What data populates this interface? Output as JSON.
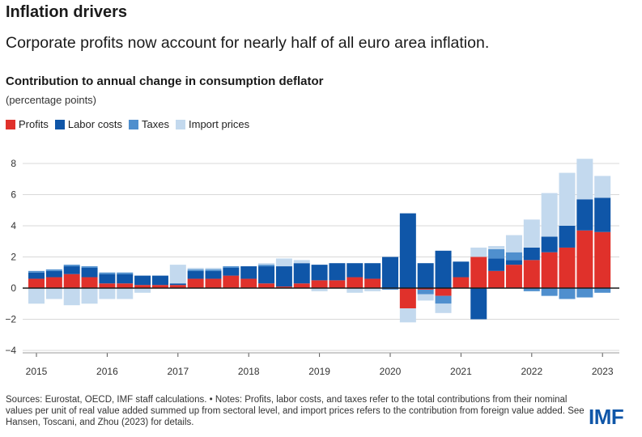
{
  "header": {
    "title": "Inflation drivers",
    "subtitle": "Corporate profits now account for nearly half of all euro area inflation."
  },
  "chart_heading": {
    "title": "Contribution to annual change in consumption deflator",
    "units": "(percentage points)"
  },
  "chart_data": {
    "type": "bar",
    "stacked": true,
    "title": "Contribution to annual change in consumption deflator",
    "ylabel": "(percentage points)",
    "ylim": [
      -4,
      9
    ],
    "yticks": [
      -4,
      -2,
      0,
      2,
      4,
      6,
      8
    ],
    "grid": true,
    "legend_position": "top-left",
    "x_tick_labels": [
      "2015",
      "2016",
      "2017",
      "2018",
      "2019",
      "2020",
      "2021",
      "2022",
      "2023"
    ],
    "quarters_start": "2015Q1",
    "categories": [
      "2015Q1",
      "2015Q2",
      "2015Q3",
      "2015Q4",
      "2016Q1",
      "2016Q2",
      "2016Q3",
      "2016Q4",
      "2017Q1",
      "2017Q2",
      "2017Q3",
      "2017Q4",
      "2018Q1",
      "2018Q2",
      "2018Q3",
      "2018Q4",
      "2019Q1",
      "2019Q2",
      "2019Q3",
      "2019Q4",
      "2020Q1",
      "2020Q2",
      "2020Q3",
      "2020Q4",
      "2021Q1",
      "2021Q2",
      "2021Q3",
      "2021Q4",
      "2022Q1",
      "2022Q2",
      "2022Q3",
      "2022Q4",
      "2023Q1"
    ],
    "series": [
      {
        "name": "Profits",
        "color": "#e0312b",
        "values": [
          0.6,
          0.7,
          0.9,
          0.7,
          0.3,
          0.3,
          0.2,
          0.2,
          0.2,
          0.6,
          0.6,
          0.8,
          0.6,
          0.3,
          0.1,
          0.3,
          0.5,
          0.5,
          0.7,
          0.6,
          0.0,
          -1.3,
          -0.1,
          -0.5,
          0.7,
          2.0,
          1.1,
          1.5,
          1.8,
          2.3,
          2.6,
          3.7,
          3.6
        ]
      },
      {
        "name": "Labor costs",
        "color": "#0f56a8",
        "values": [
          0.4,
          0.4,
          0.5,
          0.6,
          0.6,
          0.6,
          0.6,
          0.6,
          0.1,
          0.5,
          0.5,
          0.5,
          0.8,
          1.1,
          1.3,
          1.3,
          1.0,
          1.1,
          0.9,
          1.0,
          2.0,
          4.8,
          1.6,
          2.4,
          1.0,
          -2.0,
          0.8,
          0.3,
          0.8,
          1.0,
          1.4,
          2.0,
          2.2
        ]
      },
      {
        "name": "Taxes",
        "color": "#4f8fce",
        "values": [
          0.1,
          0.1,
          0.1,
          0.1,
          0.1,
          0.1,
          0.0,
          0.0,
          0.0,
          0.1,
          0.1,
          0.1,
          0.0,
          0.1,
          0.0,
          0.0,
          0.0,
          0.0,
          0.0,
          0.0,
          -0.1,
          0.0,
          -0.3,
          -0.5,
          0.0,
          0.0,
          0.6,
          0.5,
          -0.2,
          -0.5,
          -0.7,
          -0.6,
          -0.3
        ]
      },
      {
        "name": "Import prices",
        "color": "#c3d9ee",
        "values": [
          -1.0,
          -0.7,
          -1.1,
          -1.0,
          -0.7,
          -0.7,
          -0.3,
          0.0,
          1.2,
          0.1,
          0.1,
          0.0,
          0.0,
          0.1,
          0.5,
          0.2,
          -0.2,
          0.0,
          -0.3,
          -0.2,
          0.0,
          -0.9,
          -0.4,
          -0.6,
          0.0,
          0.6,
          0.2,
          1.1,
          1.8,
          2.8,
          3.4,
          2.6,
          1.4
        ]
      }
    ]
  },
  "footer": {
    "notes": "Sources: Eurostat, OECD, IMF staff calculations. • Notes: Profits, labor costs, and taxes refer to the total contributions from their nominal values per unit of real value added summed up from sectoral level, and import prices refers to the contribution from foreign value added. See Hansen, Toscani, and Zhou (2023) for details.",
    "logo_text": "IMF",
    "logo_color": "#0f56a8"
  }
}
